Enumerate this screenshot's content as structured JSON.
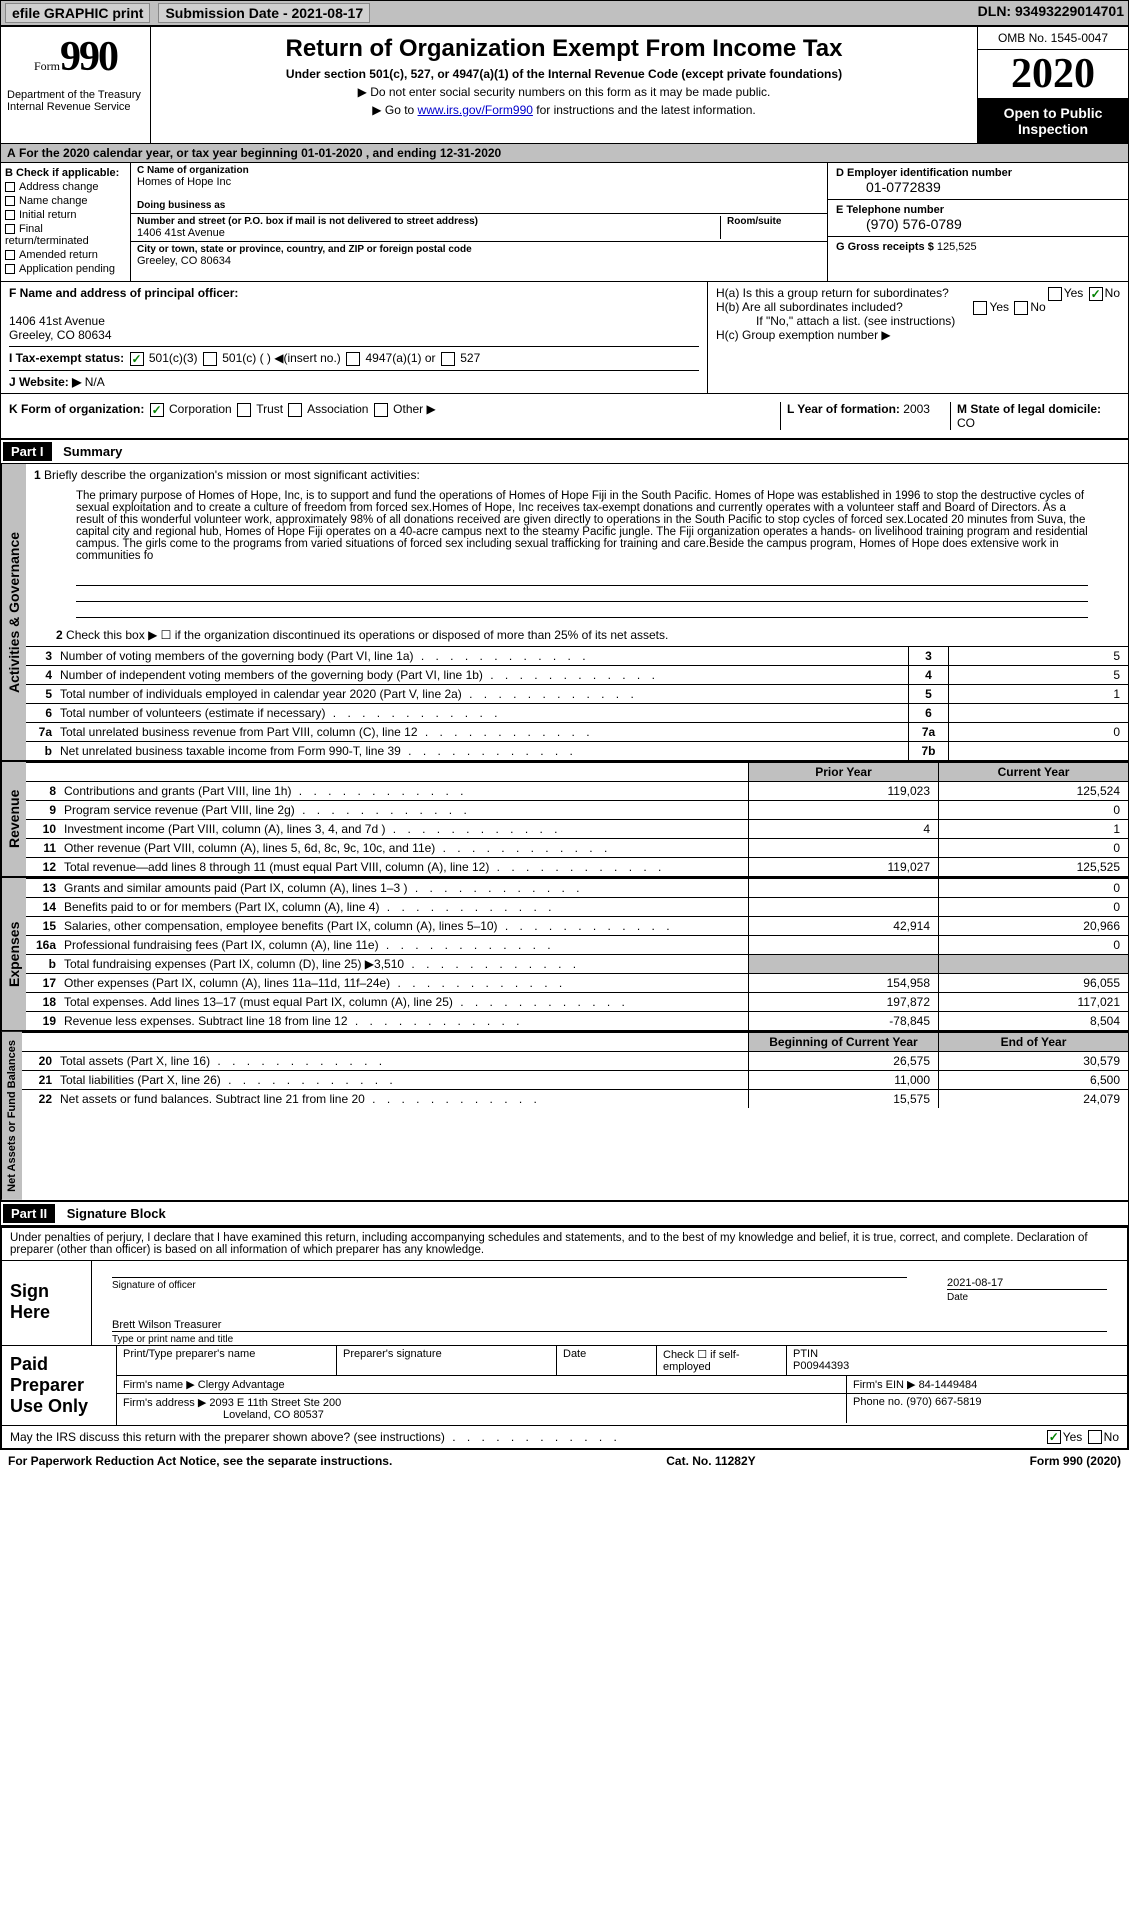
{
  "topbar": {
    "efile": "efile GRAPHIC print",
    "sub_label": "Submission Date - 2021-08-17",
    "dln": "DLN: 93493229014701"
  },
  "header": {
    "form_prefix": "Form",
    "form_number": "990",
    "dept": "Department of the Treasury\nInternal Revenue Service",
    "title": "Return of Organization Exempt From Income Tax",
    "subtitle": "Under section 501(c), 527, or 4947(a)(1) of the Internal Revenue Code (except private foundations)",
    "note1": "▶ Do not enter social security numbers on this form as it may be made public.",
    "note2_pre": "▶ Go to ",
    "note2_link": "www.irs.gov/Form990",
    "note2_post": " for instructions and the latest information.",
    "omb": "OMB No. 1545-0047",
    "year": "2020",
    "inspect": "Open to Public Inspection"
  },
  "row_a": "For the 2020 calendar year, or tax year beginning 01-01-2020    , and ending 12-31-2020",
  "box_b": {
    "title": "B Check if applicable:",
    "items": [
      "Address change",
      "Name change",
      "Initial return",
      "Final return/terminated",
      "Amended return",
      "Application pending"
    ]
  },
  "box_c": {
    "name_lbl": "C Name of organization",
    "name": "Homes of Hope Inc",
    "dba_lbl": "Doing business as",
    "dba": "",
    "addr_lbl": "Number and street (or P.O. box if mail is not delivered to street address)",
    "addr": "1406 41st Avenue",
    "suite_lbl": "Room/suite",
    "city_lbl": "City or town, state or province, country, and ZIP or foreign postal code",
    "city": "Greeley, CO  80634"
  },
  "box_de": {
    "d_lbl": "D Employer identification number",
    "d_val": "01-0772839",
    "e_lbl": "E Telephone number",
    "e_val": "(970) 576-0789",
    "g_lbl": "G Gross receipts $",
    "g_val": "125,525"
  },
  "box_f": {
    "lbl": "F  Name and address of principal officer:",
    "addr1": "1406 41st Avenue",
    "addr2": "Greeley, CO  80634"
  },
  "box_h": {
    "ha": "H(a)  Is this a group return for subordinates?",
    "hb": "H(b)  Are all subordinates included?",
    "hb_note": "If \"No,\" attach a list. (see instructions)",
    "hc": "H(c)  Group exemption number ▶"
  },
  "tax_status": {
    "lbl": "I  Tax-exempt status:",
    "opts": [
      "501(c)(3)",
      "501(c) (  ) ◀(insert no.)",
      "4947(a)(1) or",
      "527"
    ]
  },
  "website": {
    "lbl": "J  Website: ▶",
    "val": "N/A"
  },
  "box_k": {
    "lbl": "K Form of organization:",
    "opts": [
      "Corporation",
      "Trust",
      "Association",
      "Other ▶"
    ]
  },
  "box_l": {
    "lbl": "L Year of formation:",
    "val": "2003"
  },
  "box_m": {
    "lbl": "M State of legal domicile:",
    "val": "CO"
  },
  "part1": {
    "hdr": "Part I",
    "title": "Summary",
    "q1": "Briefly describe the organization's mission or most significant activities:",
    "mission": "The primary purpose of Homes of Hope, Inc, is to support and fund the operations of Homes of Hope Fiji in the South Pacific. Homes of Hope was established in 1996 to stop the destructive cycles of sexual exploitation and to create a culture of freedom from forced sex.Homes of Hope, Inc receives tax-exempt donations and currently operates with a volunteer staff and Board of Directors. As a result of this wonderful volunteer work, approximately 98% of all donations received are given directly to operations in the South Pacific to stop cycles of forced sex.Located 20 minutes from Suva, the capital city and regional hub, Homes of Hope Fiji operates on a 40-acre campus next to the steamy Pacific jungle. The Fiji organization operates a hands- on livelihood training program and residential campus. The girls come to the programs from varied situations of forced sex including sexual trafficking for training and care.Beside the campus program, Homes of Hope does extensive work in communities fo",
    "q2": "Check this box ▶ ☐ if the organization discontinued its operations or disposed of more than 25% of its net assets.",
    "lines": [
      {
        "n": "3",
        "t": "Number of voting members of the governing body (Part VI, line 1a)",
        "bn": "3",
        "bv": "5"
      },
      {
        "n": "4",
        "t": "Number of independent voting members of the governing body (Part VI, line 1b)",
        "bn": "4",
        "bv": "5"
      },
      {
        "n": "5",
        "t": "Total number of individuals employed in calendar year 2020 (Part V, line 2a)",
        "bn": "5",
        "bv": "1"
      },
      {
        "n": "6",
        "t": "Total number of volunteers (estimate if necessary)",
        "bn": "6",
        "bv": ""
      },
      {
        "n": "7a",
        "t": "Total unrelated business revenue from Part VIII, column (C), line 12",
        "bn": "7a",
        "bv": "0"
      },
      {
        "n": "b",
        "t": "Net unrelated business taxable income from Form 990-T, line 39",
        "bn": "7b",
        "bv": ""
      }
    ]
  },
  "revenue": {
    "tab": "Revenue",
    "py_hdr": "Prior Year",
    "cy_hdr": "Current Year",
    "rows": [
      {
        "n": "8",
        "t": "Contributions and grants (Part VIII, line 1h)",
        "py": "119,023",
        "cy": "125,524"
      },
      {
        "n": "9",
        "t": "Program service revenue (Part VIII, line 2g)",
        "py": "",
        "cy": "0"
      },
      {
        "n": "10",
        "t": "Investment income (Part VIII, column (A), lines 3, 4, and 7d )",
        "py": "4",
        "cy": "1"
      },
      {
        "n": "11",
        "t": "Other revenue (Part VIII, column (A), lines 5, 6d, 8c, 9c, 10c, and 11e)",
        "py": "",
        "cy": "0"
      },
      {
        "n": "12",
        "t": "Total revenue—add lines 8 through 11 (must equal Part VIII, column (A), line 12)",
        "py": "119,027",
        "cy": "125,525"
      }
    ]
  },
  "expenses": {
    "tab": "Expenses",
    "rows": [
      {
        "n": "13",
        "t": "Grants and similar amounts paid (Part IX, column (A), lines 1–3 )",
        "py": "",
        "cy": "0"
      },
      {
        "n": "14",
        "t": "Benefits paid to or for members (Part IX, column (A), line 4)",
        "py": "",
        "cy": "0"
      },
      {
        "n": "15",
        "t": "Salaries, other compensation, employee benefits (Part IX, column (A), lines 5–10)",
        "py": "42,914",
        "cy": "20,966"
      },
      {
        "n": "16a",
        "t": "Professional fundraising fees (Part IX, column (A), line 11e)",
        "py": "",
        "cy": "0"
      },
      {
        "n": "b",
        "t": "Total fundraising expenses (Part IX, column (D), line 25) ▶3,510",
        "py": "gray",
        "cy": "gray"
      },
      {
        "n": "17",
        "t": "Other expenses (Part IX, column (A), lines 11a–11d, 11f–24e)",
        "py": "154,958",
        "cy": "96,055"
      },
      {
        "n": "18",
        "t": "Total expenses. Add lines 13–17 (must equal Part IX, column (A), line 25)",
        "py": "197,872",
        "cy": "117,021"
      },
      {
        "n": "19",
        "t": "Revenue less expenses. Subtract line 18 from line 12",
        "py": "-78,845",
        "cy": "8,504"
      }
    ]
  },
  "netassets": {
    "tab": "Net Assets or Fund Balances",
    "boc": "Beginning of Current Year",
    "eoy": "End of Year",
    "rows": [
      {
        "n": "20",
        "t": "Total assets (Part X, line 16)",
        "py": "26,575",
        "cy": "30,579"
      },
      {
        "n": "21",
        "t": "Total liabilities (Part X, line 26)",
        "py": "11,000",
        "cy": "6,500"
      },
      {
        "n": "22",
        "t": "Net assets or fund balances. Subtract line 21 from line 20",
        "py": "15,575",
        "cy": "24,079"
      }
    ]
  },
  "part2": {
    "hdr": "Part II",
    "title": "Signature Block",
    "decl": "Under penalties of perjury, I declare that I have examined this return, including accompanying schedules and statements, and to the best of my knowledge and belief, it is true, correct, and complete. Declaration of preparer (other than officer) is based on all information of which preparer has any knowledge."
  },
  "sign": {
    "lbl": "Sign Here",
    "sig_lbl": "Signature of officer",
    "date": "2021-08-17",
    "date_lbl": "Date",
    "name": "Brett Wilson  Treasurer",
    "name_lbl": "Type or print name and title"
  },
  "paid": {
    "lbl": "Paid Preparer Use Only",
    "h1": "Print/Type preparer's name",
    "h2": "Preparer's signature",
    "h3": "Date",
    "h4": "Check ☐ if self-employed",
    "h5_lbl": "PTIN",
    "h5": "P00944393",
    "firm_lbl": "Firm's name    ▶",
    "firm": "Clergy Advantage",
    "ein_lbl": "Firm's EIN ▶",
    "ein": "84-1449484",
    "addr_lbl": "Firm's address ▶",
    "addr1": "2093 E 11th Street Ste 200",
    "addr2": "Loveland, CO  80537",
    "phone_lbl": "Phone no.",
    "phone": "(970) 667-5819",
    "discuss": "May the IRS discuss this return with the preparer shown above? (see instructions)"
  },
  "footer": {
    "left": "For Paperwork Reduction Act Notice, see the separate instructions.",
    "mid": "Cat. No. 11282Y",
    "right": "Form 990 (2020)"
  },
  "yesno": {
    "yes": "Yes",
    "no": "No"
  }
}
